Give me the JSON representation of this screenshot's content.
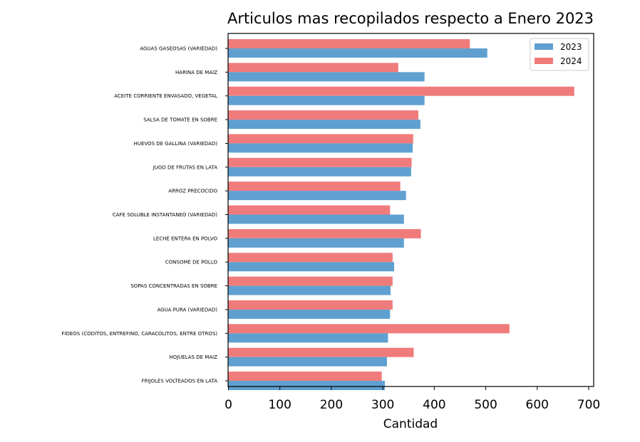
{
  "chart_data": {
    "type": "bar",
    "orientation": "horizontal",
    "title": "Articulos mas recopilados respecto a Enero 2023",
    "xlabel": "Cantidad",
    "ylabel": "",
    "xlim": [
      0,
      700
    ],
    "xticks": [
      "0",
      "100",
      "200",
      "300",
      "400",
      "500",
      "600",
      "700"
    ],
    "grid": false,
    "legend_position": "top-right",
    "categories": [
      "AGUAS GASEOSAS (VARIEDAD)",
      "HARINA DE MAIZ",
      "ACEITE CORRIENTE ENVASADO, VEGETAL",
      "SALSA DE TOMATE EN SOBRE",
      "HUEVOS DE GALLINA    (VARIEDAD)",
      "JUGO DE FRUTAS EN LATA",
      "ARROZ PRECOCIDO",
      "CAFE SOLUBLE INSTANTANEO (VARIEDAD)",
      "LECHE ENTERA EN POLVO",
      "CONSOME DE POLLO",
      "SOPAS CONCENTRADAS EN SOBRE",
      "AGUA PURA (VARIEDAD)",
      "FIDEOS (CODITOS, ENTREFINO, CARACOLITOS, ENTRE OTROS)",
      "HOJUELAS DE MAIZ",
      "FRIJOLES VOLTEADOS EN LATA"
    ],
    "series": [
      {
        "name": "2023",
        "color": "#5fa0d0",
        "values": [
          503,
          381,
          381,
          373,
          358,
          355,
          345,
          341,
          341,
          322,
          315,
          314,
          310,
          308,
          304
        ]
      },
      {
        "name": "2024",
        "color": "#f07b7b",
        "values": [
          469,
          330,
          672,
          369,
          359,
          356,
          334,
          314,
          374,
          319,
          319,
          319,
          546,
          360,
          298
        ]
      }
    ]
  }
}
